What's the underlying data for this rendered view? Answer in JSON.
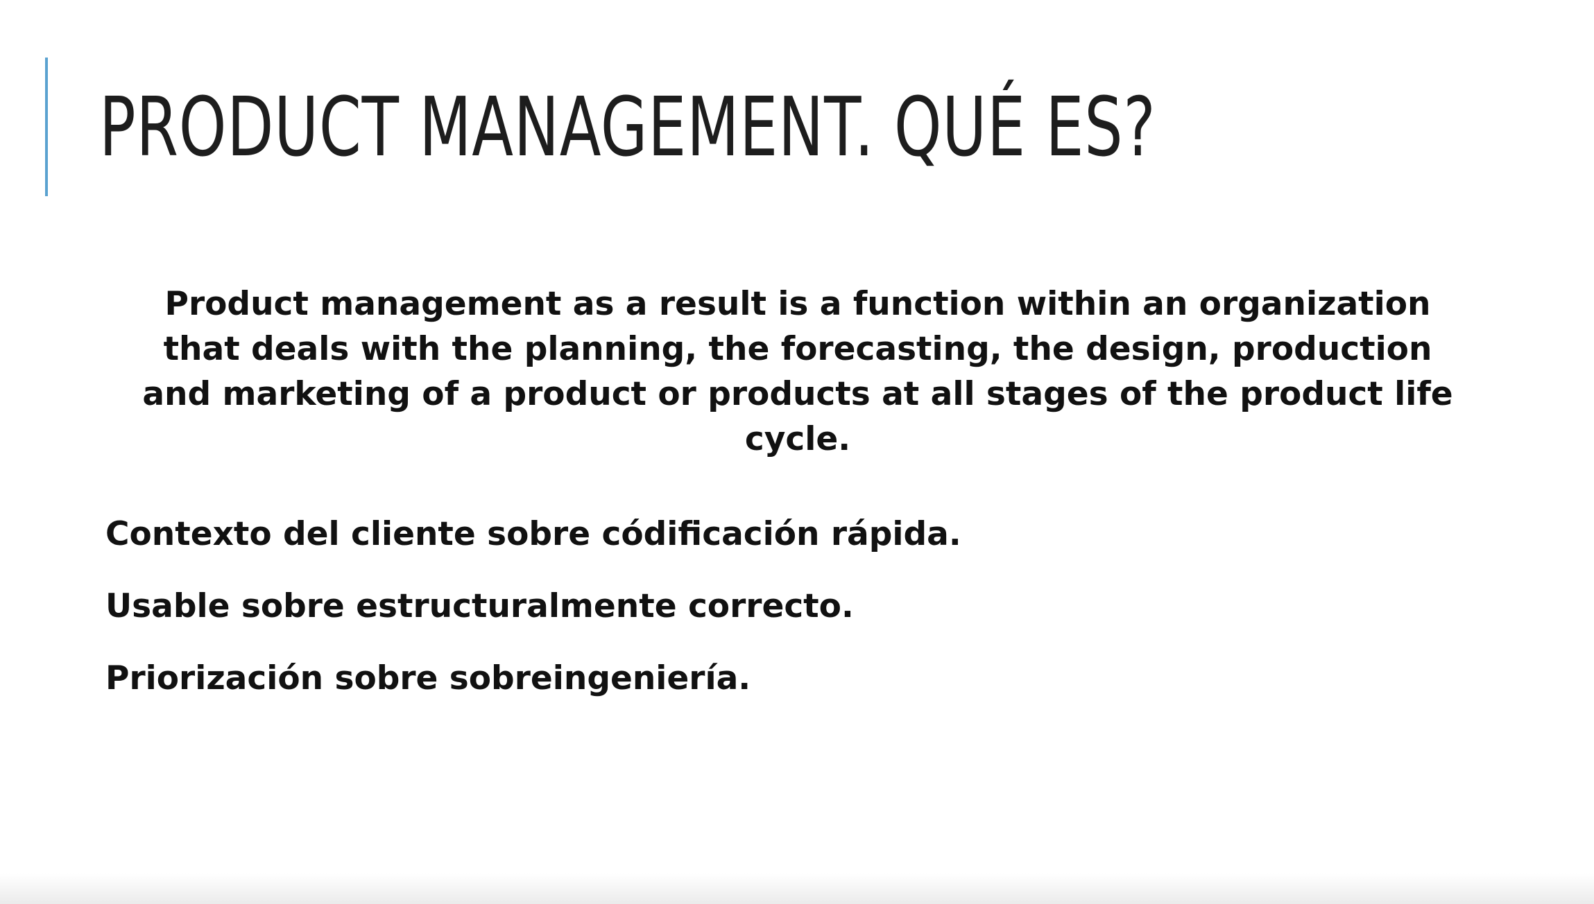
{
  "slide": {
    "title": "PRODUCT MANAGEMENT. QUÉ ES?",
    "definition": "Product management as a result is a function within an organization that deals with the planning, the forecasting, the design, production and marketing of a product or products at all stages of the product life cycle.",
    "points": [
      "Contexto del cliente sobre códificación rápida.",
      "Usable sobre estructuralmente correcto.",
      "Priorización sobre sobreingeniería."
    ],
    "accent_color": "#5aa2d0"
  }
}
